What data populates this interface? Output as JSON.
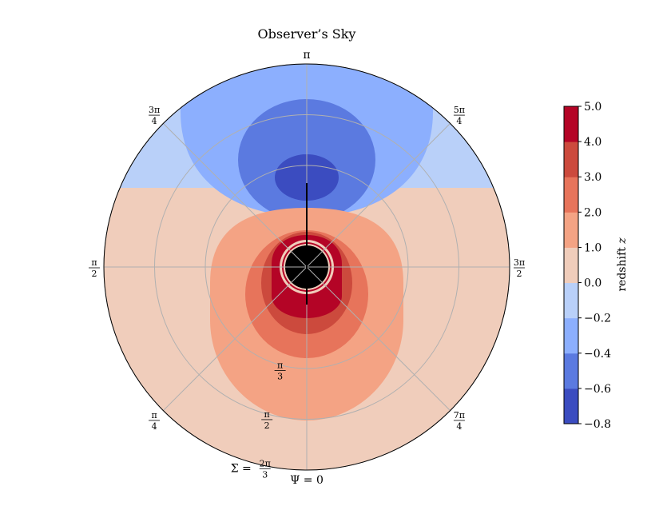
{
  "chart_data": {
    "type": "heatmap",
    "title": "Observer’s Sky",
    "colorbar": {
      "label": "redshift",
      "label_symbol": "z",
      "levels": [
        -0.8,
        -0.6,
        -0.4,
        -0.2,
        0.0,
        1.0,
        2.0,
        3.0,
        4.0,
        5.0
      ],
      "tick_labels": [
        "−0.8",
        "−0.6",
        "−0.4",
        "−0.2",
        "0.0",
        "1.0",
        "2.0",
        "3.0",
        "4.0",
        "5.0"
      ],
      "band_colors": [
        "#3b4cc0",
        "#5b7ae0",
        "#8caffe",
        "#b9d0f9",
        "#f0cdbb",
        "#f4a384",
        "#e7745b",
        "#cc4a3d",
        "#b40426"
      ]
    },
    "angular_axis": {
      "symbol": "Ψ",
      "labels": [
        {
          "angle": "0",
          "text": "Ψ = 0"
        },
        {
          "angle": "pi/4",
          "num": "π",
          "den": "4"
        },
        {
          "angle": "pi/2",
          "num": "π",
          "den": "2"
        },
        {
          "angle": "3pi/4",
          "num": "3π",
          "den": "4"
        },
        {
          "angle": "pi",
          "text": "π"
        },
        {
          "angle": "5pi/4",
          "num": "5π",
          "den": "4"
        },
        {
          "angle": "3pi/2",
          "num": "3π",
          "den": "2"
        },
        {
          "angle": "7pi/4",
          "num": "7π",
          "den": "4"
        }
      ]
    },
    "radial_axis": {
      "symbol": "Σ",
      "labels": [
        {
          "value": "pi/3",
          "num": "π",
          "den": "3"
        },
        {
          "value": "pi/2",
          "num": "π",
          "den": "2"
        },
        {
          "value": "2pi/3",
          "prefix": "Σ =",
          "num": "2π",
          "den": "3"
        }
      ]
    },
    "grid": true
  }
}
